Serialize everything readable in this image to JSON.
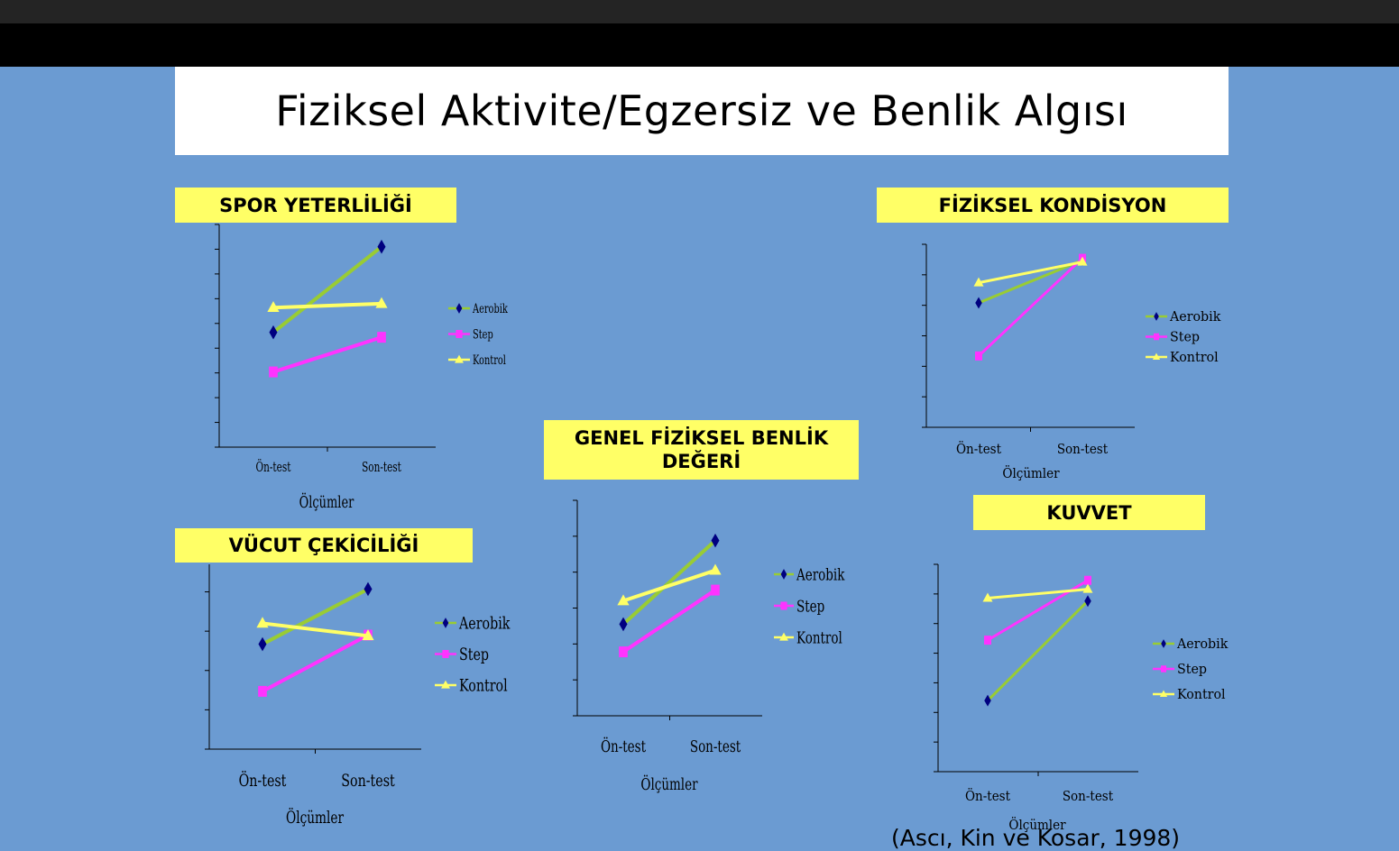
{
  "slide": {
    "title": "Fiziksel Aktivite/Egzersiz ve Benlik Algısı",
    "citation": "(Ascı, Kin ve Kosar, 1998)"
  },
  "colors": {
    "aerobik": "#000080",
    "aerobik_line": "#99cc33",
    "step": "#ff33ff",
    "kontrol": "#ffff66",
    "background": "#6b9bd2",
    "label_box": "#ffff66"
  },
  "legend_labels": [
    "Aerobik",
    "Step",
    "Kontrol"
  ],
  "chart_data": [
    {
      "id": "spor",
      "type": "line",
      "title": "SPOR YETERLİLİĞİ",
      "categories": [
        "Ön-test",
        "Son-test"
      ],
      "xlabel": "Ölçümler",
      "ylabel": "",
      "ylim": [
        13,
        17.5
      ],
      "yticks": [
        "13",
        "13.5",
        "14",
        "14.5",
        "15",
        "15.5",
        "16",
        "16.5",
        "17",
        "17.5"
      ],
      "series": [
        {
          "name": "Aerobik",
          "values": [
            15.32,
            17.05
          ]
        },
        {
          "name": "Step",
          "values": [
            14.52,
            15.22
          ]
        },
        {
          "name": "Kontrol",
          "values": [
            15.82,
            15.9
          ]
        }
      ],
      "legend": "right"
    },
    {
      "id": "kondisyon",
      "type": "line",
      "title": "FİZİKSEL KONDİSYON",
      "categories": [
        "Ön-test",
        "Son-test"
      ],
      "xlabel": "Ölçümler",
      "ylabel": "",
      "ylim": [
        13.5,
        16.5
      ],
      "yticks": [
        "13.5",
        "14",
        "14.5",
        "15",
        "15.5",
        "16",
        "16.5"
      ],
      "series": [
        {
          "name": "Aerobik",
          "values": [
            15.54,
            16.24
          ]
        },
        {
          "name": "Step",
          "values": [
            14.67,
            16.27
          ]
        },
        {
          "name": "Kontrol",
          "values": [
            15.87,
            16.21
          ]
        }
      ],
      "legend": "right"
    },
    {
      "id": "genel",
      "type": "line",
      "title": "GENEL FİZİKSEL BENLİK DEĞERİ",
      "categories": [
        "Ön-test",
        "Son-test"
      ],
      "xlabel": "Ölçümler",
      "ylabel": "",
      "ylim": [
        14,
        20
      ],
      "yticks": [
        "14",
        "15",
        "16",
        "17",
        "18",
        "19",
        "20"
      ],
      "series": [
        {
          "name": "Aerobik",
          "values": [
            16.55,
            18.88
          ]
        },
        {
          "name": "Step",
          "values": [
            15.78,
            17.5
          ]
        },
        {
          "name": "Kontrol",
          "values": [
            17.2,
            18.05
          ]
        }
      ],
      "legend": "right"
    },
    {
      "id": "vucut",
      "type": "line",
      "title": "VÜCUT ÇEKİCİLİĞİ",
      "categories": [
        "Ön-test",
        "Son-test"
      ],
      "xlabel": "Ölçümler",
      "ylabel": "",
      "ylim": [
        14,
        18.7
      ],
      "yticks": [
        "14",
        "15",
        "16",
        "17",
        "18"
      ],
      "series": [
        {
          "name": "Aerobik",
          "values": [
            16.67,
            18.07
          ]
        },
        {
          "name": "Step",
          "values": [
            15.47,
            16.9
          ]
        },
        {
          "name": "Kontrol",
          "values": [
            17.2,
            16.88
          ]
        }
      ],
      "legend": "right"
    },
    {
      "id": "kuvvet",
      "type": "line",
      "title": "KUVVET",
      "categories": [
        "Ön-test",
        "Son-test"
      ],
      "xlabel": "Ölçümler",
      "ylabel": "",
      "ylim": [
        13,
        16.5
      ],
      "yticks": [
        "13",
        "13.5",
        "14",
        "14.5",
        "15",
        "15.5",
        "16",
        "16.5"
      ],
      "series": [
        {
          "name": "Aerobik",
          "values": [
            14.2,
            15.88
          ]
        },
        {
          "name": "Step",
          "values": [
            15.22,
            16.23
          ]
        },
        {
          "name": "Kontrol",
          "values": [
            15.93,
            16.08
          ]
        }
      ],
      "legend": "right"
    }
  ]
}
